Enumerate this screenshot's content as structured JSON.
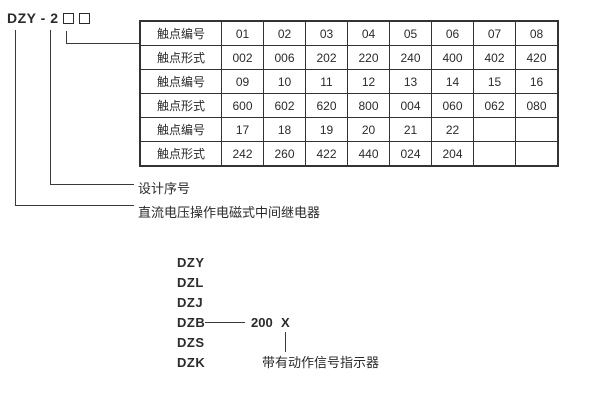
{
  "model": {
    "prefix": "DZY - 2"
  },
  "table": {
    "rows": [
      {
        "header": "触点编号",
        "cells": [
          "01",
          "02",
          "03",
          "04",
          "05",
          "06",
          "07",
          "08"
        ]
      },
      {
        "header": "触点形式",
        "cells": [
          "002",
          "006",
          "202",
          "220",
          "240",
          "400",
          "402",
          "420"
        ]
      },
      {
        "header": "触点编号",
        "cells": [
          "09",
          "10",
          "11",
          "12",
          "13",
          "14",
          "15",
          "16"
        ]
      },
      {
        "header": "触点形式",
        "cells": [
          "600",
          "602",
          "620",
          "800",
          "004",
          "060",
          "062",
          "080"
        ]
      },
      {
        "header": "触点编号",
        "cells": [
          "17",
          "18",
          "19",
          "20",
          "21",
          "22",
          "",
          ""
        ]
      },
      {
        "header": "触点形式",
        "cells": [
          "242",
          "260",
          "422",
          "440",
          "024",
          "204",
          "",
          ""
        ]
      }
    ]
  },
  "annotations": {
    "design_serial": "设计序号",
    "relay_description": "直流电压操作电磁式中间继电器"
  },
  "series_list": {
    "items": [
      "DZY",
      "DZL",
      "DZJ",
      "DZB",
      "DZS",
      "DZK"
    ],
    "dzb_value": "200",
    "dzb_suffix": "X",
    "indicator_note": "带有动作信号指示器"
  },
  "colors": {
    "text": "#2b2b2b",
    "border": "#333333",
    "background": "#ffffff"
  }
}
